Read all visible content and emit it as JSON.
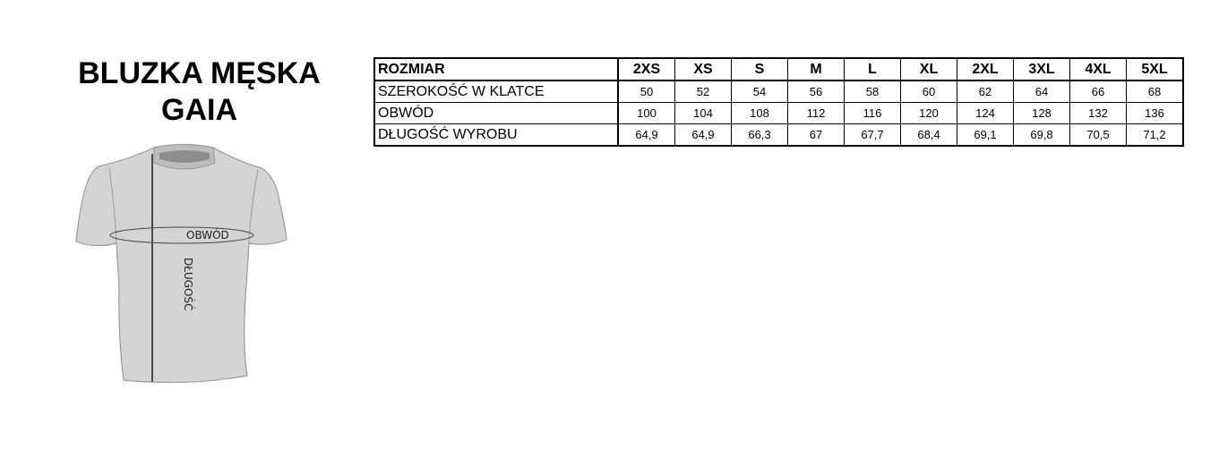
{
  "title": {
    "line1": "BLUZKA MĘSKA",
    "line2": "GAIA"
  },
  "diagram": {
    "circumference_label": "OBWÓD",
    "length_label": "DŁUGOŚĆ",
    "shirt_color": "#d4d4d4"
  },
  "table": {
    "header_label": "ROZMIAR",
    "sizes": [
      "2XS",
      "XS",
      "S",
      "M",
      "L",
      "XL",
      "2XL",
      "3XL",
      "4XL",
      "5XL"
    ],
    "rows": [
      {
        "label": "SZEROKOŚĆ W KLATCE",
        "values": [
          "50",
          "52",
          "54",
          "56",
          "58",
          "60",
          "62",
          "64",
          "66",
          "68"
        ]
      },
      {
        "label": "OBWÓD",
        "values": [
          "100",
          "104",
          "108",
          "112",
          "116",
          "120",
          "124",
          "128",
          "132",
          "136"
        ]
      },
      {
        "label": "DŁUGOŚĆ WYROBU",
        "values": [
          "64,9",
          "64,9",
          "66,3",
          "67",
          "67,7",
          "68,4",
          "69,1",
          "69,8",
          "70,5",
          "71,2"
        ]
      }
    ]
  }
}
